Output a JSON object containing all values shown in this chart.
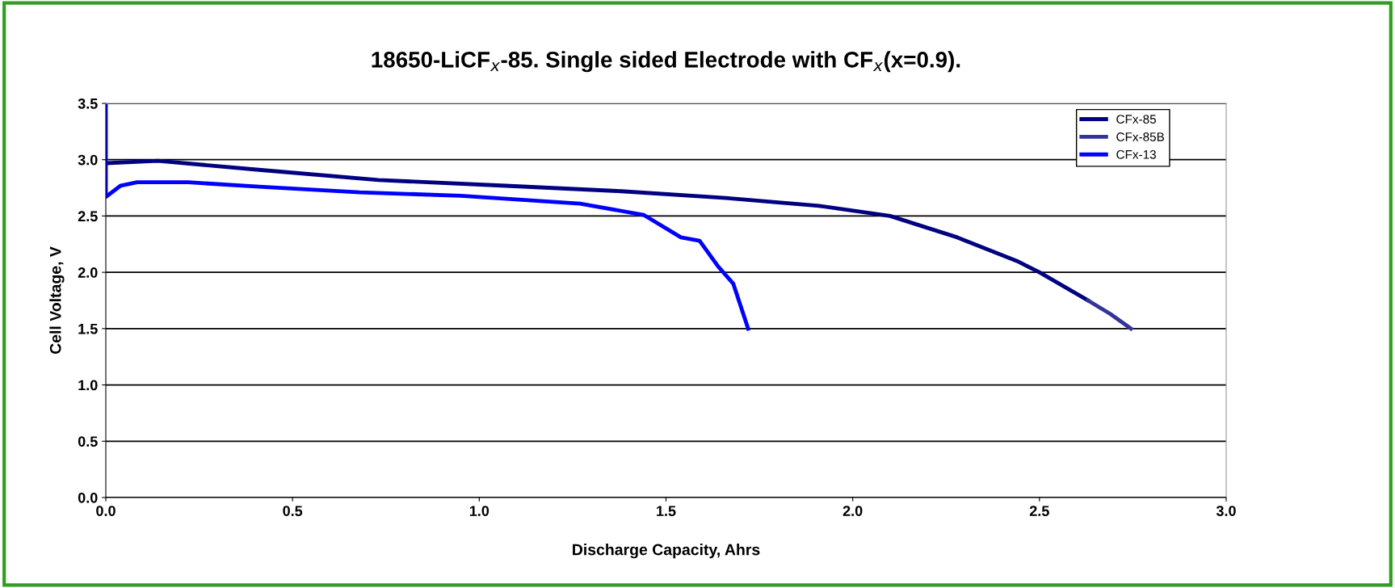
{
  "chart_data": {
    "type": "line",
    "title": "18650-LiCF$_{x}$-85. Single sided Electrode with CF$_{x}$(x=0.9).",
    "xlabel": "Discharge Capacity, Ahrs",
    "ylabel": "Cell Voltage, V",
    "xlim": [
      0,
      3
    ],
    "xticks": [
      {
        "value": 0,
        "label": "0.0"
      },
      0.5,
      {
        "value": 1,
        "label": "1.0"
      },
      1.5,
      {
        "value": 2,
        "label": "2.0"
      },
      2.5,
      {
        "value": 3,
        "label": "3.0"
      }
    ],
    "ylim": [
      0,
      3.5
    ],
    "yticks": [
      {
        "value": 0,
        "label": "0.0"
      },
      0.5,
      {
        "value": 1,
        "label": "1.0"
      },
      1.5,
      {
        "value": 2,
        "label": "2.0"
      },
      2.5,
      {
        "value": 3,
        "label": "3.0"
      },
      3.5
    ],
    "grid": "y",
    "legend": "top right",
    "marker": "none",
    "line_style": "solid",
    "series": [
      {
        "name": "CFx-85",
        "color": "#000080",
        "x": [
          0.003,
          0.14,
          0.41,
          0.73,
          1.06,
          1.38,
          1.66,
          1.91,
          2.1,
          2.28,
          2.44,
          2.5,
          2.63
        ],
        "values": [
          2.97,
          2.99,
          2.91,
          2.82,
          2.77,
          2.72,
          2.66,
          2.59,
          2.5,
          2.31,
          2.1,
          2.0,
          1.75
        ]
      },
      {
        "name": "CFx-85B",
        "color": "#333399",
        "x": [
          2.63,
          2.69,
          2.745
        ],
        "values": [
          1.75,
          1.63,
          1.5
        ]
      },
      {
        "name": "CFx-13",
        "color": "#0000ff",
        "x": [
          0,
          0,
          0.04,
          0.084,
          0.22,
          0.41,
          0.68,
          0.95,
          1.27,
          1.44,
          1.54,
          1.59,
          1.64,
          1.68,
          1.72
        ],
        "values": [
          3.5,
          2.67,
          2.77,
          2.8,
          2.8,
          2.76,
          2.71,
          2.68,
          2.61,
          2.51,
          2.31,
          2.28,
          2.05,
          1.9,
          1.5
        ]
      }
    ]
  }
}
